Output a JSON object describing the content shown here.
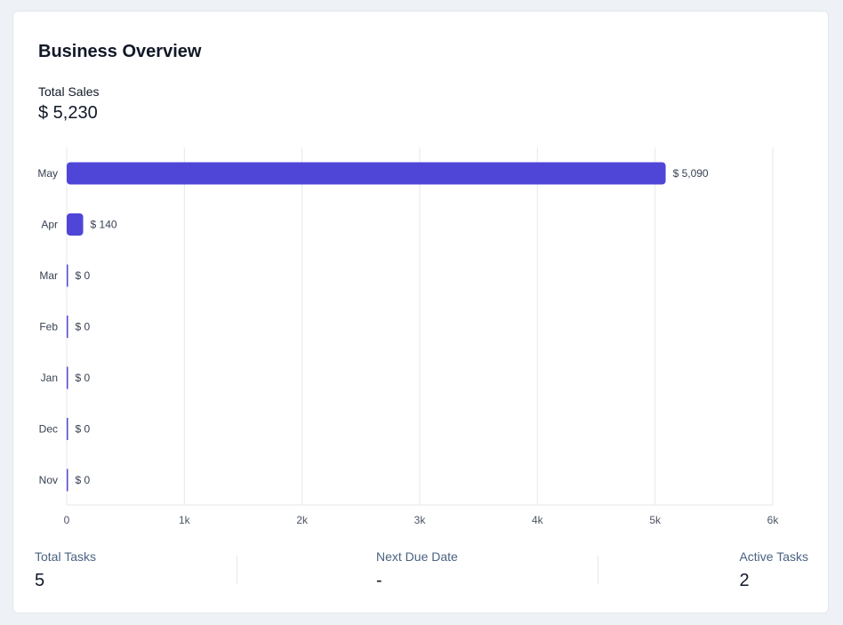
{
  "header": {
    "title": "Business Overview"
  },
  "sales": {
    "label": "Total Sales",
    "value": "$ 5,230"
  },
  "chart_data": {
    "type": "bar",
    "orientation": "horizontal",
    "categories": [
      "May",
      "Apr",
      "Mar",
      "Feb",
      "Jan",
      "Dec",
      "Nov"
    ],
    "values": [
      5090,
      140,
      0,
      0,
      0,
      0,
      0
    ],
    "value_labels": [
      "$ 5,090",
      "$ 140",
      "$ 0",
      "$ 0",
      "$ 0",
      "$ 0",
      "$ 0"
    ],
    "xlim": [
      0,
      6000
    ],
    "xticks": [
      0,
      1000,
      2000,
      3000,
      4000,
      5000,
      6000
    ],
    "xtick_labels": [
      "0",
      "1k",
      "2k",
      "3k",
      "4k",
      "5k",
      "6k"
    ],
    "grid": true,
    "bar_color": "#4f46d8",
    "title": "",
    "xlabel": "",
    "ylabel": ""
  },
  "stats": [
    {
      "label": "Total Tasks",
      "value": "5"
    },
    {
      "label": "Next Due Date",
      "value": "-"
    },
    {
      "label": "Active Tasks",
      "value": "2"
    }
  ],
  "colors": {
    "accent": "#4f46d8",
    "stat_label": "#4a6282"
  }
}
